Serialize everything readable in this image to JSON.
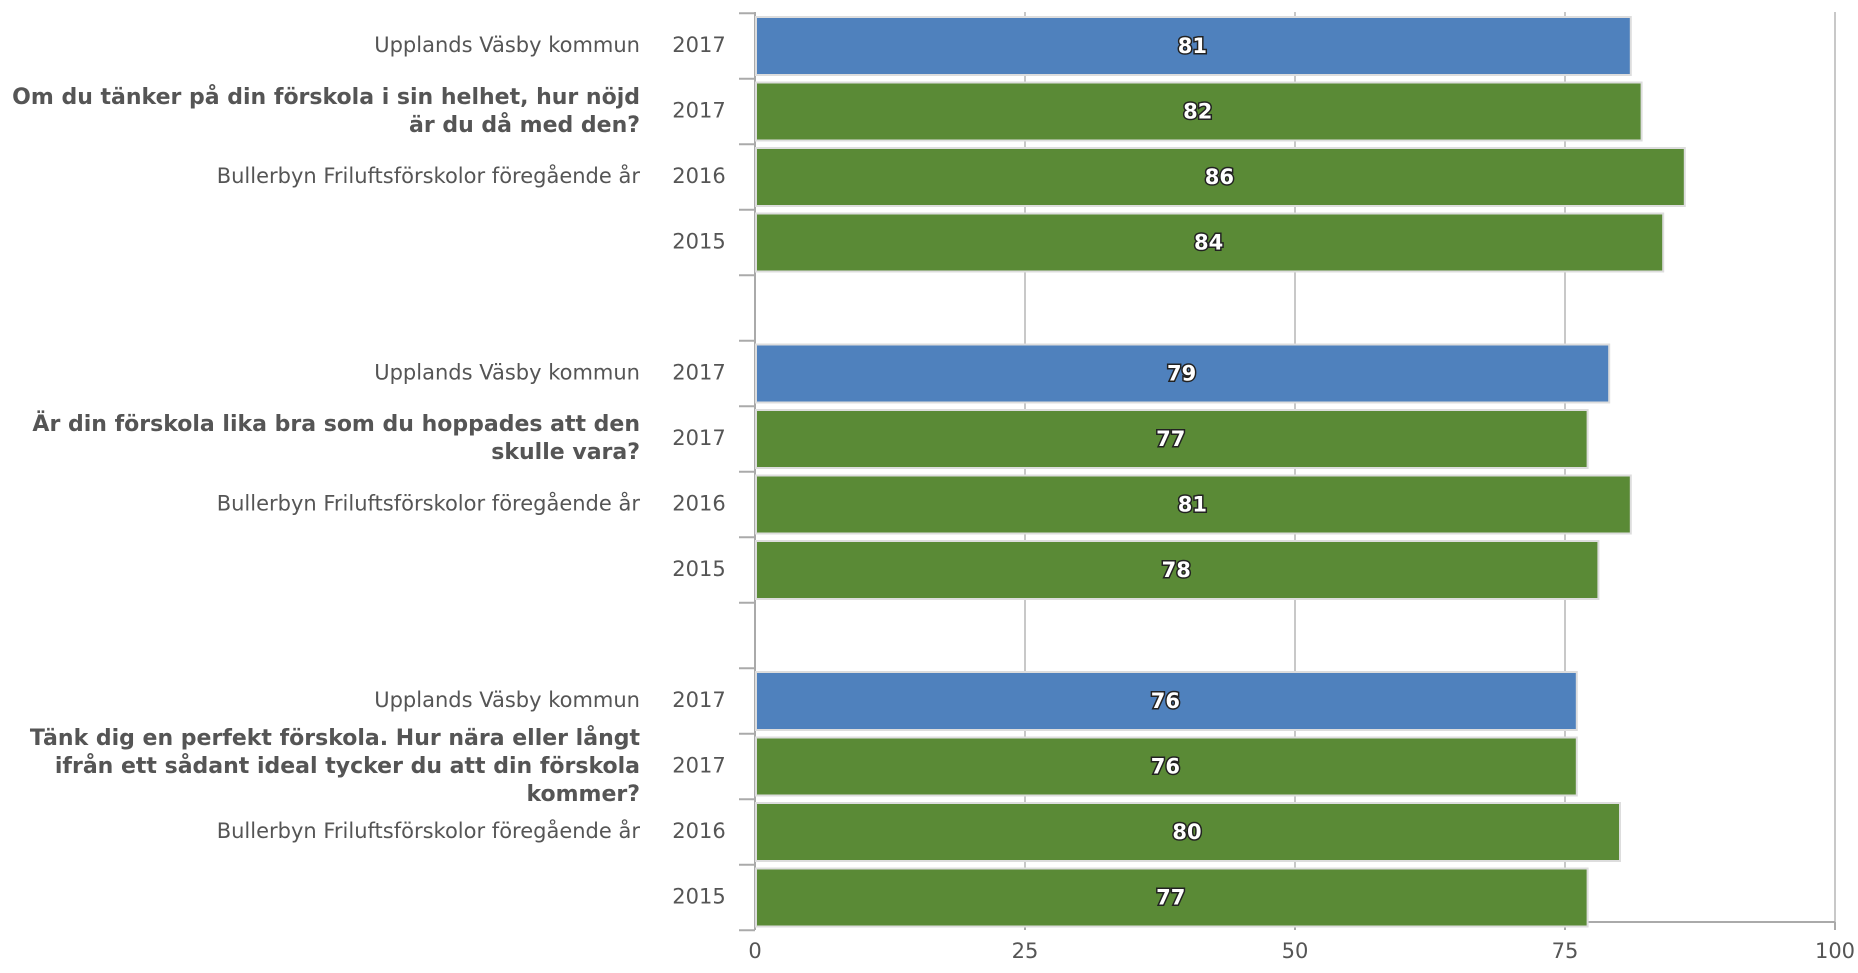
{
  "chart_data": {
    "type": "bar",
    "xlim": [
      0,
      100
    ],
    "xticks": [
      0,
      25,
      50,
      75,
      100
    ],
    "grid": true,
    "groups": [
      {
        "question": "Om du tänker på din förskola i sin helhet, hur nöjd är du då med den?",
        "rows": [
          {
            "label": "Upplands Väsby kommun",
            "year": "2017",
            "value": 81,
            "color": "#4f81bd"
          },
          {
            "label": null,
            "year": "2017",
            "value": 82,
            "color": "#5a8a36"
          },
          {
            "label": "Bullerbyn Friluftsförskolor föregående år",
            "year": "2016",
            "value": 86,
            "color": "#5a8a36"
          },
          {
            "label": null,
            "year": "2015",
            "value": 84,
            "color": "#5a8a36"
          }
        ]
      },
      {
        "question": "Är din förskola lika bra som du hoppades att den skulle vara?",
        "rows": [
          {
            "label": "Upplands Väsby kommun",
            "year": "2017",
            "value": 79,
            "color": "#4f81bd"
          },
          {
            "label": null,
            "year": "2017",
            "value": 77,
            "color": "#5a8a36"
          },
          {
            "label": "Bullerbyn Friluftsförskolor föregående år",
            "year": "2016",
            "value": 81,
            "color": "#5a8a36"
          },
          {
            "label": null,
            "year": "2015",
            "value": 78,
            "color": "#5a8a36"
          }
        ]
      },
      {
        "question": "Tänk dig en perfekt förskola. Hur nära eller långt ifrån ett sådant ideal tycker du att din förskola kommer?",
        "rows": [
          {
            "label": "Upplands Väsby kommun",
            "year": "2017",
            "value": 76,
            "color": "#4f81bd"
          },
          {
            "label": null,
            "year": "2017",
            "value": 76,
            "color": "#5a8a36"
          },
          {
            "label": "Bullerbyn Friluftsförskolor föregående år",
            "year": "2016",
            "value": 80,
            "color": "#5a8a36"
          },
          {
            "label": null,
            "year": "2015",
            "value": 77,
            "color": "#5a8a36"
          }
        ]
      }
    ]
  }
}
